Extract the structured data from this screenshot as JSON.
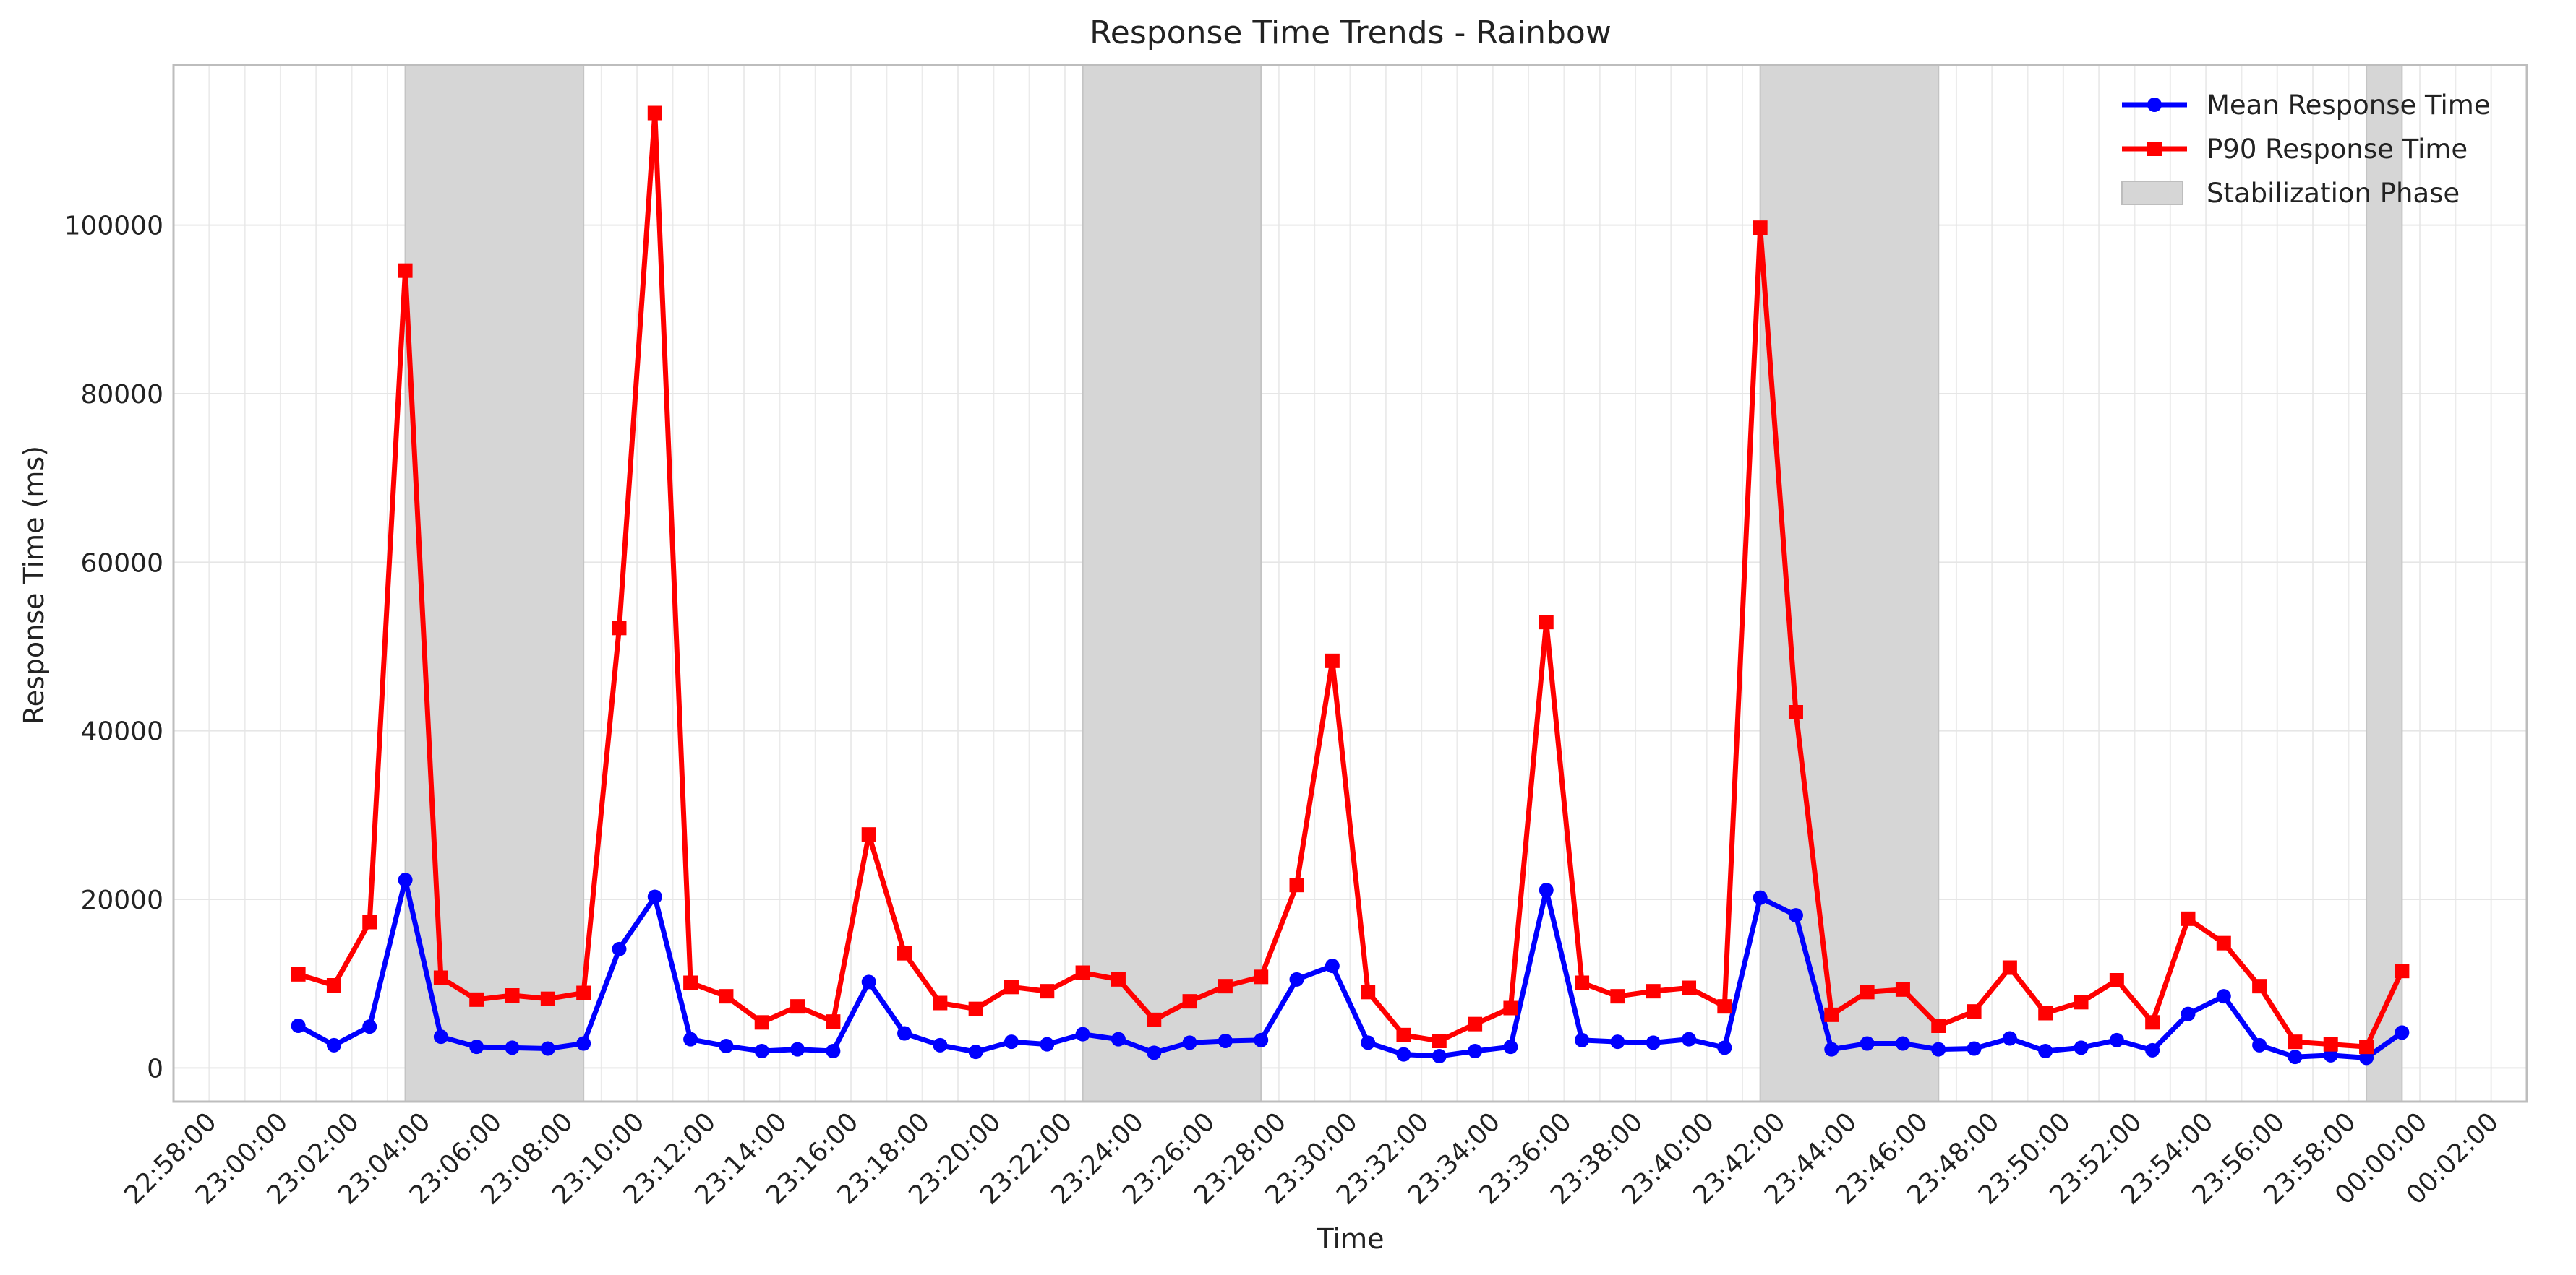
{
  "chart_data": {
    "type": "line",
    "title": "Response Time Trends - Rainbow",
    "xlabel": "Time",
    "ylabel": "Response Time (ms)",
    "xlim": [
      "22:57:00",
      "00:03:00"
    ],
    "ylim": [
      -4000,
      119000
    ],
    "x_ticks": [
      "22:58:00",
      "23:00:00",
      "23:02:00",
      "23:04:00",
      "23:06:00",
      "23:08:00",
      "23:10:00",
      "23:12:00",
      "23:14:00",
      "23:16:00",
      "23:18:00",
      "23:20:00",
      "23:22:00",
      "23:24:00",
      "23:26:00",
      "23:28:00",
      "23:30:00",
      "23:32:00",
      "23:34:00",
      "23:36:00",
      "23:38:00",
      "23:40:00",
      "23:42:00",
      "23:44:00",
      "23:46:00",
      "23:48:00",
      "23:50:00",
      "23:52:00",
      "23:54:00",
      "23:56:00",
      "23:58:00",
      "00:00:00",
      "00:02:00"
    ],
    "y_ticks": [
      0,
      20000,
      40000,
      60000,
      80000,
      100000
    ],
    "y_tick_labels": [
      "0",
      "20000",
      "40000",
      "60000",
      "80000",
      "100000"
    ],
    "grid": true,
    "legend_position": "top-right",
    "x": [
      "23:00:30",
      "23:01:30",
      "23:02:30",
      "23:03:30",
      "23:04:30",
      "23:05:30",
      "23:06:30",
      "23:07:30",
      "23:08:30",
      "23:09:30",
      "23:10:30",
      "23:11:30",
      "23:12:30",
      "23:13:30",
      "23:14:30",
      "23:15:30",
      "23:16:30",
      "23:17:30",
      "23:18:30",
      "23:19:30",
      "23:20:30",
      "23:21:30",
      "23:22:30",
      "23:23:30",
      "23:24:30",
      "23:25:30",
      "23:26:30",
      "23:27:30",
      "23:28:30",
      "23:29:30",
      "23:30:30",
      "23:31:30",
      "23:32:30",
      "23:33:30",
      "23:34:30",
      "23:35:30",
      "23:36:30",
      "23:37:30",
      "23:38:30",
      "23:39:30",
      "23:40:30",
      "23:41:30",
      "23:42:30",
      "23:43:30",
      "23:44:30",
      "23:45:30",
      "23:46:30",
      "23:47:30",
      "23:48:30",
      "23:49:30",
      "23:50:30",
      "23:51:30",
      "23:52:30",
      "23:53:30",
      "23:54:30",
      "23:55:30",
      "23:56:30",
      "23:57:30",
      "23:58:30",
      "23:59:30"
    ],
    "series": [
      {
        "name": "Mean Response Time",
        "color": "#0000ff",
        "marker": "circle",
        "values": [
          5000,
          2700,
          4900,
          22300,
          3700,
          2500,
          2400,
          2300,
          2900,
          14100,
          20300,
          3400,
          2600,
          2000,
          2200,
          2000,
          10200,
          4100,
          2700,
          1900,
          3100,
          2800,
          4000,
          3400,
          1800,
          3000,
          3200,
          3300,
          10500,
          12100,
          3000,
          1600,
          1400,
          2000,
          2500,
          21100,
          3300,
          3100,
          3000,
          3400,
          2400,
          20200,
          18100,
          2200,
          2900,
          2900,
          2200,
          2300,
          3500,
          2000,
          2400,
          3300,
          2100,
          6400,
          8500,
          2700,
          1300,
          1500,
          1200,
          4200
        ]
      },
      {
        "name": "P90 Response Time",
        "color": "#ff0000",
        "marker": "square",
        "values": [
          11100,
          9800,
          17300,
          94600,
          10700,
          8100,
          8600,
          8200,
          8900,
          52200,
          113300,
          10100,
          8500,
          5400,
          7300,
          5500,
          27700,
          13600,
          7700,
          7000,
          9600,
          9100,
          11300,
          10500,
          5700,
          7900,
          9700,
          10800,
          21700,
          48300,
          9000,
          3900,
          3200,
          5200,
          7100,
          52900,
          10100,
          8500,
          9100,
          9500,
          7300,
          99700,
          42200,
          6300,
          9000,
          9300,
          5000,
          6700,
          11900,
          6500,
          7800,
          10400,
          5400,
          17700,
          14800,
          9700,
          3100,
          2800,
          2500,
          11500
        ]
      }
    ],
    "stabilization_phases": [
      {
        "start": "23:03:30",
        "end": "23:08:30"
      },
      {
        "start": "23:22:30",
        "end": "23:27:30"
      },
      {
        "start": "23:41:30",
        "end": "23:46:30"
      },
      {
        "start": "23:58:30",
        "end": "23:59:30"
      }
    ],
    "stabilization_label": "Stabilization Phase",
    "stabilization_color": "#d6d6d6"
  }
}
